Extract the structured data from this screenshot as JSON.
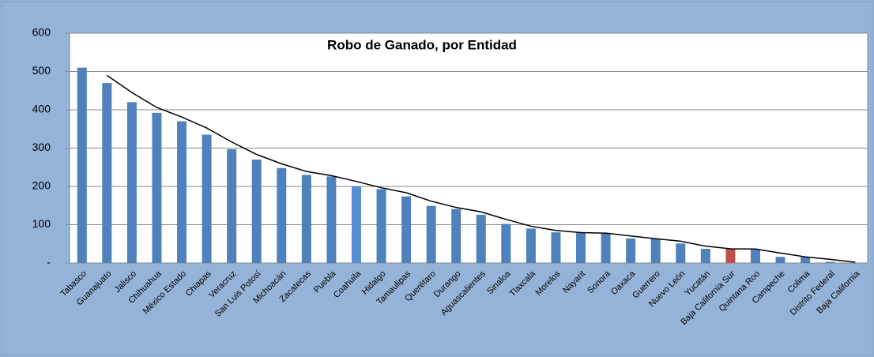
{
  "chart_data": {
    "type": "bar",
    "title": "Robo de Ganado, por Entidad",
    "categories": [
      "Tabasco",
      "Guanajuato",
      "Jalisco",
      "Chihuahua",
      "México Estado",
      "Chiapas",
      "Veracruz",
      "San Luis Potosí",
      "Michoacán",
      "Zacatecas",
      "Puebla",
      "Coahuila",
      "Hidalgo",
      "Tamaulipas",
      "Querétaro",
      "Durango",
      "Aguascalientes",
      "Sinaloa",
      "Tlaxcala",
      "Morelos",
      "Nayarit",
      "Sonora",
      "Oaxaca",
      "Guerrero",
      "Nuevo León",
      "Yucatán",
      "Baja California Sur",
      "Quintana Roo",
      "Campeche",
      "Colima",
      "Distrito Federal",
      "Baja California"
    ],
    "values": [
      510,
      470,
      420,
      392,
      370,
      335,
      297,
      270,
      248,
      230,
      226,
      200,
      193,
      174,
      149,
      141,
      126,
      102,
      90,
      80,
      79,
      77,
      64,
      63,
      51,
      37,
      37,
      36,
      16,
      16,
      3,
      1
    ],
    "color": "#4f81bd",
    "colors": [
      "#4f81bd",
      "#4f81bd",
      "#4f81bd",
      "#4f81bd",
      "#4f81bd",
      "#4f81bd",
      "#4f81bd",
      "#4f81bd",
      "#4f81bd",
      "#4f81bd",
      "#4f81bd",
      "#558ed5",
      "#4f81bd",
      "#4f81bd",
      "#4f81bd",
      "#4f81bd",
      "#4f81bd",
      "#4f81bd",
      "#4f81bd",
      "#4f81bd",
      "#4f81bd",
      "#4f81bd",
      "#4f81bd",
      "#4f81bd",
      "#4f81bd",
      "#4f81bd",
      "#c0504d",
      "#4f81bd",
      "#4f81bd",
      "#4f81bd",
      "#4f81bd",
      "#4f81bd"
    ],
    "trendline": {
      "color": "#000000",
      "values": [
        null,
        490,
        445,
        406,
        381,
        352.5,
        316,
        283.5,
        259,
        239,
        228,
        213,
        196.5,
        183.5,
        161.5,
        145,
        133.5,
        114,
        96,
        85,
        79.5,
        78,
        70.5,
        63.5,
        57,
        44,
        37,
        36.5,
        26,
        16,
        9.5,
        2
      ]
    },
    "ylim": [
      0,
      600
    ],
    "yticks": [
      {
        "value": 0,
        "label": "-"
      },
      100,
      200,
      300,
      400,
      500,
      600
    ],
    "grid": true
  }
}
